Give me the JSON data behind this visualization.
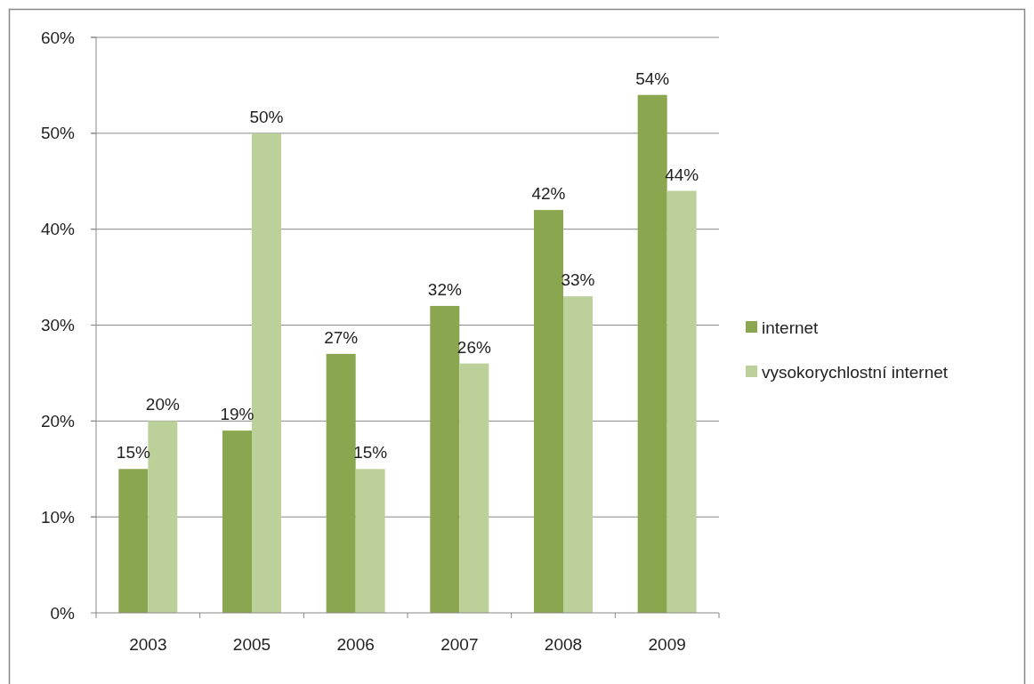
{
  "chart_data": {
    "type": "bar",
    "categories": [
      "2003",
      "2005",
      "2006",
      "2007",
      "2008",
      "2009"
    ],
    "series": [
      {
        "name": "internet",
        "color": "#8aa64f",
        "values": [
          15,
          19,
          27,
          32,
          42,
          54
        ],
        "value_labels": [
          "15%",
          "19%",
          "27%",
          "32%",
          "42%",
          "54%"
        ]
      },
      {
        "name": "vysokorychlostní internet",
        "color": "#bcd19a",
        "values": [
          20,
          50,
          15,
          26,
          33,
          44
        ],
        "value_labels": [
          "20%",
          "50%",
          "15%",
          "26%",
          "33%",
          "44%"
        ]
      }
    ],
    "ylim": [
      0,
      60
    ],
    "yticks": [
      {
        "value": 0,
        "label": "0%"
      },
      {
        "value": 10,
        "label": "10%"
      },
      {
        "value": 20,
        "label": "20%"
      },
      {
        "value": 30,
        "label": "30%"
      },
      {
        "value": 40,
        "label": "40%"
      },
      {
        "value": 50,
        "label": "50%"
      },
      {
        "value": 60,
        "label": "60%"
      }
    ],
    "grid": "y",
    "legend": "right"
  }
}
